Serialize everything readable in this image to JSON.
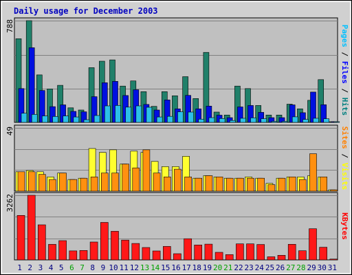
{
  "chart_data": {
    "type": "bar",
    "title": "Daily usage for December 2003",
    "days": [
      "1",
      "2",
      "3",
      "4",
      "5",
      "6",
      "7",
      "8",
      "9",
      "10",
      "11",
      "12",
      "13",
      "14",
      "15",
      "16",
      "17",
      "18",
      "19",
      "20",
      "21",
      "22",
      "23",
      "24",
      "25",
      "26",
      "27",
      "28",
      "29",
      "30",
      "31"
    ],
    "weekend_days": [
      "6",
      "7",
      "13",
      "14",
      "20",
      "21",
      "27",
      "28"
    ],
    "panels": [
      {
        "name": "hits-files-pages",
        "ymax_label": "788",
        "ymax": 788,
        "legend": [
          {
            "text": "Pages",
            "color": "#00c0ff"
          },
          {
            "text": " / ",
            "color": "#000000"
          },
          {
            "text": "Files",
            "color": "#0000ff"
          },
          {
            "text": " / ",
            "color": "#000000"
          },
          {
            "text": "Hits",
            "color": "#008080"
          }
        ],
        "series": [
          {
            "name": "Hits",
            "color": "#20806a",
            "values": [
              648,
              788,
              368,
              259,
              287,
              113,
              96,
              424,
              474,
              484,
              281,
              321,
              238,
              124,
              238,
              206,
              354,
              185,
              542,
              80,
              57,
              281,
              262,
              131,
              57,
              57,
              141,
              105,
              171,
              331,
              4
            ]
          },
          {
            "name": "Files",
            "color": "#0010e0",
            "values": [
              262,
              578,
              247,
              122,
              136,
              85,
              82,
              199,
              307,
              318,
              208,
              253,
              139,
              96,
              174,
              105,
              209,
              105,
              126,
              56,
              37,
              120,
              131,
              78,
              37,
              37,
              136,
              75,
              235,
              137,
              3
            ]
          },
          {
            "name": "Pages",
            "color": "#2cc0e8",
            "values": [
              71,
              62,
              50,
              46,
              50,
              42,
              21,
              53,
              128,
              131,
              118,
              128,
              117,
              42,
              47,
              82,
              80,
              25,
              37,
              30,
              15,
              32,
              35,
              29,
              8,
              8,
              43,
              23,
              32,
              28,
              2
            ]
          }
        ]
      },
      {
        "name": "visits-sites",
        "ymax_label": "49",
        "ymax": 49,
        "legend": [
          {
            "text": "Sites",
            "color": "#ff8000"
          },
          {
            "text": " / ",
            "color": "#000000"
          },
          {
            "text": "Visits",
            "color": "#ffff00"
          }
        ],
        "series": [
          {
            "name": "Visits",
            "color": "#ffff30",
            "values": [
              15,
              16,
              15,
              11,
              14,
              9,
              10,
              33,
              30,
              32,
              21,
              31,
              30,
              23,
              19,
              19,
              27,
              10,
              12,
              11,
              10,
              10,
              11,
              10,
              6,
              10,
              11,
              11,
              12,
              11,
              1
            ]
          },
          {
            "name": "Sites",
            "color": "#ff9010",
            "values": [
              15,
              15,
              13,
              9,
              14,
              9,
              10,
              11,
              14,
              14,
              21,
              18,
              32,
              14,
              11,
              17,
              11,
              10,
              12,
              11,
              10,
              10,
              10,
              10,
              5,
              10,
              11,
              9,
              29,
              11,
              1
            ]
          }
        ]
      },
      {
        "name": "kbytes",
        "ymax_label": "3262",
        "ymax": 3262,
        "legend": [
          {
            "text": "KBytes",
            "color": "#ff0000"
          }
        ],
        "series": [
          {
            "name": "KBytes",
            "color": "#ff1818",
            "values": [
              2245,
              3262,
              1770,
              785,
              973,
              455,
              477,
              901,
              1892,
              1442,
              1001,
              829,
              626,
              451,
              680,
              311,
              1069,
              754,
              794,
              380,
              267,
              809,
              809,
              779,
              157,
              233,
              789,
              460,
              1573,
              640,
              40
            ]
          }
        ]
      }
    ],
    "colors": {
      "plot_background": "#c0c0c0",
      "frame_background": "#d0d0d0",
      "gridline": "#808080",
      "weekday_label": "#000080",
      "weekend_label": "#00a000"
    }
  }
}
